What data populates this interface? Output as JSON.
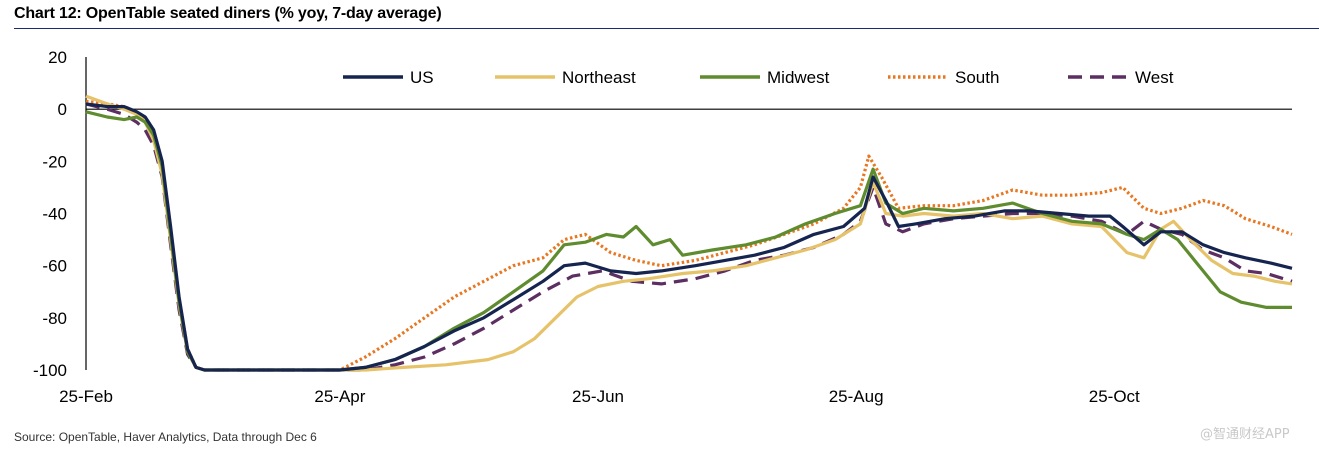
{
  "header": {
    "title": "Chart 12: OpenTable seated diners (% yoy, 7-day average)"
  },
  "footer": {
    "source": "Source: OpenTable, Haver Analytics,  Data through Dec 6",
    "watermark": "@智通财经APP"
  },
  "chart_data": {
    "type": "line",
    "xlabel": "",
    "ylabel": "",
    "ylim": [
      -100,
      20
    ],
    "yticks": [
      20,
      0,
      -20,
      -40,
      -60,
      -80,
      -100
    ],
    "xlim": [
      "2020-02-25",
      "2020-12-06"
    ],
    "xticks": [
      "25-Feb",
      "25-Apr",
      "25-Jun",
      "25-Aug",
      "25-Oct"
    ],
    "xtick_dates": [
      "2020-02-25",
      "2020-04-25",
      "2020-06-25",
      "2020-08-25",
      "2020-10-25"
    ],
    "grid": false,
    "legend": "top",
    "series": [
      {
        "name": "US",
        "color": "#16254f",
        "style": "solid",
        "points": [
          [
            "2020-02-25",
            2
          ],
          [
            "2020-03-01",
            1
          ],
          [
            "2020-03-05",
            1
          ],
          [
            "2020-03-08",
            -1
          ],
          [
            "2020-03-10",
            -3
          ],
          [
            "2020-03-12",
            -8
          ],
          [
            "2020-03-14",
            -20
          ],
          [
            "2020-03-16",
            -45
          ],
          [
            "2020-03-18",
            -72
          ],
          [
            "2020-03-20",
            -92
          ],
          [
            "2020-03-22",
            -99
          ],
          [
            "2020-03-24",
            -100
          ],
          [
            "2020-04-25",
            -100
          ],
          [
            "2020-05-01",
            -99
          ],
          [
            "2020-05-08",
            -96
          ],
          [
            "2020-05-15",
            -91
          ],
          [
            "2020-05-22",
            -85
          ],
          [
            "2020-05-29",
            -80
          ],
          [
            "2020-06-05",
            -73
          ],
          [
            "2020-06-12",
            -66
          ],
          [
            "2020-06-17",
            -60
          ],
          [
            "2020-06-22",
            -59
          ],
          [
            "2020-06-28",
            -62
          ],
          [
            "2020-07-04",
            -63
          ],
          [
            "2020-07-10",
            -62
          ],
          [
            "2020-07-18",
            -60
          ],
          [
            "2020-07-25",
            -58
          ],
          [
            "2020-08-01",
            -56
          ],
          [
            "2020-08-08",
            -53
          ],
          [
            "2020-08-15",
            -48
          ],
          [
            "2020-08-22",
            -45
          ],
          [
            "2020-08-27",
            -38
          ],
          [
            "2020-08-29",
            -26
          ],
          [
            "2020-09-01",
            -35
          ],
          [
            "2020-09-04",
            -45
          ],
          [
            "2020-09-08",
            -44
          ],
          [
            "2020-09-15",
            -42
          ],
          [
            "2020-09-22",
            -41
          ],
          [
            "2020-09-29",
            -39
          ],
          [
            "2020-10-05",
            -39
          ],
          [
            "2020-10-12",
            -40
          ],
          [
            "2020-10-19",
            -41
          ],
          [
            "2020-10-24",
            -41
          ],
          [
            "2020-10-27",
            -45
          ],
          [
            "2020-11-01",
            -52
          ],
          [
            "2020-11-05",
            -47
          ],
          [
            "2020-11-10",
            -47
          ],
          [
            "2020-11-15",
            -52
          ],
          [
            "2020-11-20",
            -55
          ],
          [
            "2020-11-25",
            -57
          ],
          [
            "2020-12-01",
            -59
          ],
          [
            "2020-12-06",
            -61
          ]
        ]
      },
      {
        "name": "Northeast",
        "color": "#e6c36a",
        "style": "solid",
        "points": [
          [
            "2020-02-25",
            5
          ],
          [
            "2020-03-01",
            2
          ],
          [
            "2020-03-05",
            0
          ],
          [
            "2020-03-08",
            -2
          ],
          [
            "2020-03-10",
            -5
          ],
          [
            "2020-03-12",
            -12
          ],
          [
            "2020-03-14",
            -25
          ],
          [
            "2020-03-16",
            -50
          ],
          [
            "2020-03-18",
            -75
          ],
          [
            "2020-03-20",
            -93
          ],
          [
            "2020-03-22",
            -99
          ],
          [
            "2020-03-24",
            -100
          ],
          [
            "2020-05-01",
            -100
          ],
          [
            "2020-05-10",
            -99
          ],
          [
            "2020-05-20",
            -98
          ],
          [
            "2020-05-30",
            -96
          ],
          [
            "2020-06-05",
            -93
          ],
          [
            "2020-06-10",
            -88
          ],
          [
            "2020-06-15",
            -80
          ],
          [
            "2020-06-20",
            -72
          ],
          [
            "2020-06-25",
            -68
          ],
          [
            "2020-07-01",
            -66
          ],
          [
            "2020-07-07",
            -65
          ],
          [
            "2020-07-15",
            -63
          ],
          [
            "2020-07-22",
            -62
          ],
          [
            "2020-07-30",
            -60
          ],
          [
            "2020-08-06",
            -57
          ],
          [
            "2020-08-13",
            -54
          ],
          [
            "2020-08-20",
            -50
          ],
          [
            "2020-08-26",
            -44
          ],
          [
            "2020-08-29",
            -28
          ],
          [
            "2020-09-01",
            -40
          ],
          [
            "2020-09-05",
            -41
          ],
          [
            "2020-09-10",
            -40
          ],
          [
            "2020-09-17",
            -41
          ],
          [
            "2020-09-24",
            -40
          ],
          [
            "2020-10-01",
            -42
          ],
          [
            "2020-10-08",
            -41
          ],
          [
            "2020-10-15",
            -44
          ],
          [
            "2020-10-22",
            -45
          ],
          [
            "2020-10-28",
            -55
          ],
          [
            "2020-11-01",
            -57
          ],
          [
            "2020-11-05",
            -46
          ],
          [
            "2020-11-08",
            -43
          ],
          [
            "2020-11-12",
            -50
          ],
          [
            "2020-11-17",
            -58
          ],
          [
            "2020-11-22",
            -63
          ],
          [
            "2020-11-27",
            -64
          ],
          [
            "2020-12-02",
            -66
          ],
          [
            "2020-12-06",
            -67
          ]
        ]
      },
      {
        "name": "Midwest",
        "color": "#5e8c2e",
        "style": "solid",
        "points": [
          [
            "2020-02-25",
            -1
          ],
          [
            "2020-03-01",
            -3
          ],
          [
            "2020-03-05",
            -4
          ],
          [
            "2020-03-08",
            -3
          ],
          [
            "2020-03-10",
            -5
          ],
          [
            "2020-03-12",
            -10
          ],
          [
            "2020-03-14",
            -22
          ],
          [
            "2020-03-16",
            -48
          ],
          [
            "2020-03-18",
            -74
          ],
          [
            "2020-03-20",
            -93
          ],
          [
            "2020-03-22",
            -99
          ],
          [
            "2020-03-24",
            -100
          ],
          [
            "2020-04-25",
            -100
          ],
          [
            "2020-05-01",
            -99
          ],
          [
            "2020-05-08",
            -96
          ],
          [
            "2020-05-15",
            -91
          ],
          [
            "2020-05-22",
            -84
          ],
          [
            "2020-05-29",
            -78
          ],
          [
            "2020-06-05",
            -70
          ],
          [
            "2020-06-12",
            -62
          ],
          [
            "2020-06-17",
            -52
          ],
          [
            "2020-06-22",
            -51
          ],
          [
            "2020-06-27",
            -48
          ],
          [
            "2020-07-01",
            -49
          ],
          [
            "2020-07-04",
            -45
          ],
          [
            "2020-07-08",
            -52
          ],
          [
            "2020-07-12",
            -50
          ],
          [
            "2020-07-15",
            -56
          ],
          [
            "2020-07-22",
            -54
          ],
          [
            "2020-07-30",
            -52
          ],
          [
            "2020-08-06",
            -49
          ],
          [
            "2020-08-13",
            -44
          ],
          [
            "2020-08-20",
            -40
          ],
          [
            "2020-08-26",
            -37
          ],
          [
            "2020-08-29",
            -23
          ],
          [
            "2020-09-01",
            -36
          ],
          [
            "2020-09-05",
            -40
          ],
          [
            "2020-09-10",
            -38
          ],
          [
            "2020-09-17",
            -39
          ],
          [
            "2020-09-24",
            -38
          ],
          [
            "2020-10-01",
            -36
          ],
          [
            "2020-10-08",
            -40
          ],
          [
            "2020-10-15",
            -43
          ],
          [
            "2020-10-22",
            -44
          ],
          [
            "2020-10-28",
            -48
          ],
          [
            "2020-11-01",
            -50
          ],
          [
            "2020-11-05",
            -46
          ],
          [
            "2020-11-09",
            -50
          ],
          [
            "2020-11-14",
            -60
          ],
          [
            "2020-11-19",
            -70
          ],
          [
            "2020-11-24",
            -74
          ],
          [
            "2020-11-30",
            -76
          ],
          [
            "2020-12-06",
            -76
          ]
        ]
      },
      {
        "name": "South",
        "color": "#e87722",
        "style": "dotted",
        "points": [
          [
            "2020-02-25",
            3
          ],
          [
            "2020-03-01",
            2
          ],
          [
            "2020-03-05",
            1
          ],
          [
            "2020-03-08",
            -1
          ],
          [
            "2020-03-10",
            -4
          ],
          [
            "2020-03-12",
            -10
          ],
          [
            "2020-03-14",
            -22
          ],
          [
            "2020-03-16",
            -46
          ],
          [
            "2020-03-18",
            -73
          ],
          [
            "2020-03-20",
            -92
          ],
          [
            "2020-03-22",
            -99
          ],
          [
            "2020-03-24",
            -100
          ],
          [
            "2020-04-25",
            -100
          ],
          [
            "2020-05-01",
            -95
          ],
          [
            "2020-05-08",
            -88
          ],
          [
            "2020-05-15",
            -80
          ],
          [
            "2020-05-22",
            -72
          ],
          [
            "2020-05-29",
            -66
          ],
          [
            "2020-06-05",
            -60
          ],
          [
            "2020-06-12",
            -57
          ],
          [
            "2020-06-17",
            -50
          ],
          [
            "2020-06-22",
            -48
          ],
          [
            "2020-06-28",
            -55
          ],
          [
            "2020-07-04",
            -58
          ],
          [
            "2020-07-10",
            -60
          ],
          [
            "2020-07-18",
            -58
          ],
          [
            "2020-07-25",
            -55
          ],
          [
            "2020-08-01",
            -52
          ],
          [
            "2020-08-08",
            -48
          ],
          [
            "2020-08-15",
            -44
          ],
          [
            "2020-08-22",
            -38
          ],
          [
            "2020-08-26",
            -30
          ],
          [
            "2020-08-28",
            -18
          ],
          [
            "2020-08-31",
            -26
          ],
          [
            "2020-09-04",
            -38
          ],
          [
            "2020-09-10",
            -37
          ],
          [
            "2020-09-17",
            -37
          ],
          [
            "2020-09-24",
            -35
          ],
          [
            "2020-10-01",
            -31
          ],
          [
            "2020-10-08",
            -33
          ],
          [
            "2020-10-15",
            -33
          ],
          [
            "2020-10-22",
            -32
          ],
          [
            "2020-10-27",
            -30
          ],
          [
            "2020-11-01",
            -38
          ],
          [
            "2020-11-05",
            -40
          ],
          [
            "2020-11-10",
            -38
          ],
          [
            "2020-11-15",
            -35
          ],
          [
            "2020-11-20",
            -37
          ],
          [
            "2020-11-25",
            -42
          ],
          [
            "2020-12-01",
            -45
          ],
          [
            "2020-12-06",
            -48
          ]
        ]
      },
      {
        "name": "West",
        "color": "#5c2e62",
        "style": "dashed",
        "points": [
          [
            "2020-02-25",
            2
          ],
          [
            "2020-03-01",
            0
          ],
          [
            "2020-03-05",
            -2
          ],
          [
            "2020-03-08",
            -5
          ],
          [
            "2020-03-10",
            -8
          ],
          [
            "2020-03-12",
            -14
          ],
          [
            "2020-03-14",
            -26
          ],
          [
            "2020-03-16",
            -52
          ],
          [
            "2020-03-18",
            -77
          ],
          [
            "2020-03-20",
            -94
          ],
          [
            "2020-03-22",
            -99
          ],
          [
            "2020-03-24",
            -100
          ],
          [
            "2020-05-01",
            -100
          ],
          [
            "2020-05-08",
            -98
          ],
          [
            "2020-05-15",
            -95
          ],
          [
            "2020-05-22",
            -90
          ],
          [
            "2020-05-29",
            -84
          ],
          [
            "2020-06-05",
            -77
          ],
          [
            "2020-06-12",
            -70
          ],
          [
            "2020-06-19",
            -64
          ],
          [
            "2020-06-26",
            -62
          ],
          [
            "2020-07-03",
            -66
          ],
          [
            "2020-07-10",
            -67
          ],
          [
            "2020-07-18",
            -65
          ],
          [
            "2020-07-25",
            -62
          ],
          [
            "2020-08-01",
            -58
          ],
          [
            "2020-08-08",
            -56
          ],
          [
            "2020-08-15",
            -53
          ],
          [
            "2020-08-22",
            -48
          ],
          [
            "2020-08-26",
            -43
          ],
          [
            "2020-08-29",
            -30
          ],
          [
            "2020-09-01",
            -44
          ],
          [
            "2020-09-05",
            -47
          ],
          [
            "2020-09-10",
            -44
          ],
          [
            "2020-09-17",
            -42
          ],
          [
            "2020-09-24",
            -41
          ],
          [
            "2020-10-01",
            -40
          ],
          [
            "2020-10-08",
            -40
          ],
          [
            "2020-10-15",
            -41
          ],
          [
            "2020-10-22",
            -43
          ],
          [
            "2020-10-28",
            -48
          ],
          [
            "2020-11-01",
            -43
          ],
          [
            "2020-11-05",
            -46
          ],
          [
            "2020-11-10",
            -48
          ],
          [
            "2020-11-15",
            -54
          ],
          [
            "2020-11-20",
            -57
          ],
          [
            "2020-11-25",
            -62
          ],
          [
            "2020-11-30",
            -63
          ],
          [
            "2020-12-06",
            -66
          ]
        ]
      }
    ]
  }
}
